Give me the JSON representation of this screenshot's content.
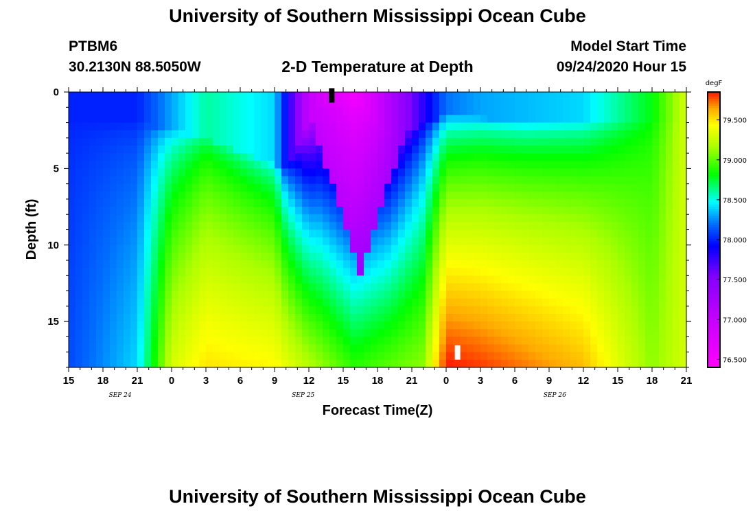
{
  "header": {
    "title_top": "University of Southern Mississippi Ocean Cube",
    "title_bottom": "University of Southern Mississippi Ocean Cube",
    "station": "PTBM6",
    "coords": "30.2130N 88.5050W",
    "plot_title": "2-D Temperature at Depth",
    "start_label": "Model Start Time",
    "start_value": "09/24/2020 Hour 15"
  },
  "chart_data": {
    "type": "heatmap",
    "title": "2-D Temperature at Depth",
    "xlabel": "Forecast Time(Z)",
    "ylabel": "Depth (ft)",
    "x_tick_labels": [
      "15",
      "18",
      "21",
      "0",
      "3",
      "6",
      "9",
      "12",
      "15",
      "18",
      "21",
      "0",
      "3",
      "6",
      "9",
      "12",
      "15",
      "18",
      "21"
    ],
    "date_labels": [
      {
        "label": "SEP 24",
        "hour_index": 4.5
      },
      {
        "label": "SEP 25",
        "hour_index": 20.5
      },
      {
        "label": "SEP 26",
        "hour_index": 42.5
      }
    ],
    "x_range_hours": [
      0,
      54
    ],
    "y_ticks": [
      "0",
      "5",
      "10",
      "15"
    ],
    "y_tick_values": [
      0,
      5,
      10,
      15
    ],
    "ylim": [
      0,
      18
    ],
    "colorbar": {
      "unit": "degF",
      "range": [
        76.4,
        79.85
      ],
      "tick_labels": [
        "76.500",
        "77.000",
        "77.500",
        "78.000",
        "78.500",
        "79.000",
        "79.500"
      ],
      "tick_values": [
        76.5,
        77.0,
        77.5,
        78.0,
        78.5,
        79.0,
        79.5
      ]
    },
    "field_description": "Temperature (degF) vs forecast hour (0-54 from 09/24 15Z) and depth (ft).",
    "profiles_by_hour": [
      {
        "hour": 0,
        "surface": 78.0,
        "bottom": 78.1
      },
      {
        "hour": 6,
        "surface": 78.0,
        "bottom": 78.4
      },
      {
        "hour": 9,
        "surface": 78.3,
        "bottom": 79.3
      },
      {
        "hour": 12,
        "surface": 78.6,
        "bottom": 79.5
      },
      {
        "hour": 18,
        "surface": 78.4,
        "bottom": 79.45
      },
      {
        "hour": 21,
        "surface": 77.0,
        "bottom": 79.2
      },
      {
        "hour": 25,
        "surface": 76.5,
        "bottom": 78.9
      },
      {
        "hour": 31,
        "surface": 77.8,
        "bottom": 79.1
      },
      {
        "hour": 33,
        "surface": 78.2,
        "bottom": 79.85
      },
      {
        "hour": 36,
        "surface": 78.3,
        "bottom": 79.8
      },
      {
        "hour": 45,
        "surface": 78.4,
        "bottom": 79.6
      },
      {
        "hour": 51,
        "surface": 78.8,
        "bottom": 79.1
      },
      {
        "hour": 54,
        "surface": 79.3,
        "bottom": 79.3
      }
    ],
    "markers": [
      {
        "hour": 23,
        "depth": 0.2,
        "color": "#000000"
      },
      {
        "hour": 34,
        "depth": 17.0,
        "color": "#ffffff"
      }
    ]
  }
}
